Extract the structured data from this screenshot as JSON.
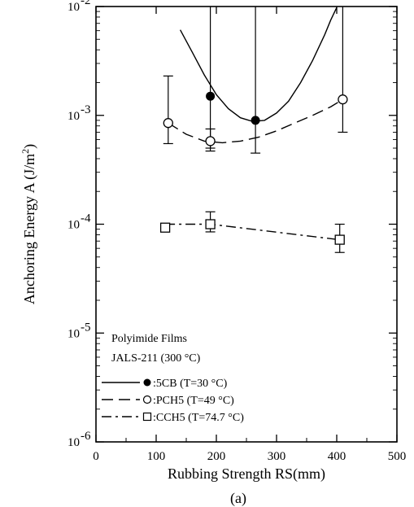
{
  "chart_data": {
    "type": "scatter",
    "title": "",
    "panel_label": "(a)",
    "xlabel": "Rubbing  Strength  RS(mm)",
    "ylabel_main": "Anchoring  Energy  A  (J/m",
    "ylabel_sup": "2",
    "ylabel_end": ")",
    "xlim": [
      0,
      500
    ],
    "ylim": [
      1e-06,
      0.01
    ],
    "yscale": "log",
    "x_ticks": [
      0,
      100,
      200,
      300,
      400,
      500
    ],
    "x_tick_labels": [
      "0",
      "100",
      "200",
      "300",
      "400",
      "500"
    ],
    "y_ticks": [
      1e-06,
      1e-05,
      0.0001,
      0.001,
      0.01
    ],
    "y_tick_labels": [
      {
        "base": "10",
        "exp": "-6"
      },
      {
        "base": "10",
        "exp": "-5"
      },
      {
        "base": "10",
        "exp": "-4"
      },
      {
        "base": "10",
        "exp": "-3"
      },
      {
        "base": "10",
        "exp": "-2"
      }
    ],
    "grid": false,
    "annotation": {
      "line1": "Polyimide Films",
      "line2": "JALS-211 (300 °C)"
    },
    "series": [
      {
        "name": ":5CB (T=30 °C)",
        "marker": "filled-circle",
        "line": "solid",
        "points": [
          {
            "x": 190,
            "y": 0.0015,
            "err_low": 0.0005,
            "err_high": 0.01
          },
          {
            "x": 265,
            "y": 0.0009,
            "err_low": 0.00045,
            "err_high": 0.01
          }
        ],
        "fit": [
          [
            140,
            0.0061
          ],
          [
            160,
            0.0038
          ],
          [
            180,
            0.00235
          ],
          [
            200,
            0.00155
          ],
          [
            220,
            0.00115
          ],
          [
            240,
            0.00095
          ],
          [
            260,
            0.00088
          ],
          [
            280,
            0.0009
          ],
          [
            300,
            0.00105
          ],
          [
            320,
            0.00135
          ],
          [
            340,
            0.002
          ],
          [
            360,
            0.0032
          ],
          [
            380,
            0.0055
          ],
          [
            390,
            0.0075
          ],
          [
            400,
            0.0098
          ]
        ]
      },
      {
        "name": ":PCH5 (T=49 °C)",
        "marker": "open-circle",
        "line": "dashed",
        "points": [
          {
            "x": 120,
            "y": 0.00085,
            "err_low": 0.00055,
            "err_high": 0.0023
          },
          {
            "x": 190,
            "y": 0.00058,
            "err_low": 0.00047,
            "err_high": 0.00075
          },
          {
            "x": 410,
            "y": 0.0014,
            "err_low": 0.0007,
            "err_high": 0.01
          }
        ],
        "fit": [
          [
            120,
            0.00085
          ],
          [
            150,
            0.00067
          ],
          [
            180,
            0.00058
          ],
          [
            210,
            0.00056
          ],
          [
            240,
            0.00058
          ],
          [
            270,
            0.00063
          ],
          [
            300,
            0.00072
          ],
          [
            330,
            0.00085
          ],
          [
            360,
            0.001
          ],
          [
            390,
            0.0012
          ],
          [
            410,
            0.0014
          ]
        ]
      },
      {
        "name": ":CCH5 (T=74.7 °C)",
        "marker": "open-square",
        "line": "dash-dot",
        "points": [
          {
            "x": 115,
            "y": 9.3e-05,
            "err_low": null,
            "err_high": null
          },
          {
            "x": 190,
            "y": 0.0001,
            "err_low": 8.5e-05,
            "err_high": 0.00013
          },
          {
            "x": 405,
            "y": 7.2e-05,
            "err_low": 5.5e-05,
            "err_high": 0.0001
          }
        ],
        "fit": [
          [
            115,
            0.0001
          ],
          [
            190,
            0.0001
          ],
          [
            405,
            7.2e-05
          ]
        ]
      }
    ]
  }
}
